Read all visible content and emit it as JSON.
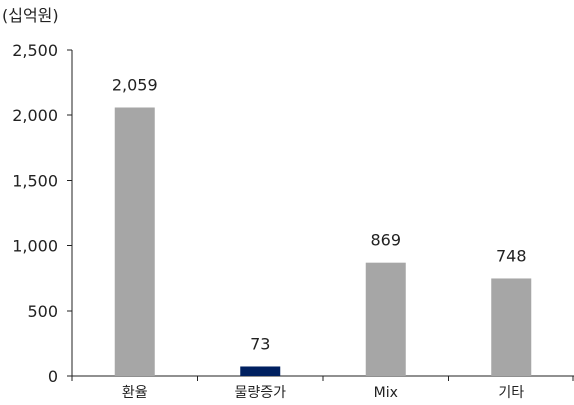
{
  "chart_data": {
    "type": "bar",
    "unit_label": "(십억원)",
    "categories": [
      "환율",
      "물량증가",
      "Mix",
      "기타"
    ],
    "values": [
      2059,
      73,
      869,
      748
    ],
    "value_labels": [
      "2,059",
      "73",
      "869",
      "748"
    ],
    "y_ticks": [
      0,
      500,
      1000,
      1500,
      2000,
      2500
    ],
    "y_tick_labels": [
      "0",
      "500",
      "1,000",
      "1,500",
      "2,000",
      "2,500"
    ],
    "ylim": [
      0,
      2500
    ],
    "grid": false,
    "legend": "none",
    "bar_colors": [
      "#a6a6a6",
      "#002060",
      "#a6a6a6",
      "#a6a6a6"
    ]
  }
}
